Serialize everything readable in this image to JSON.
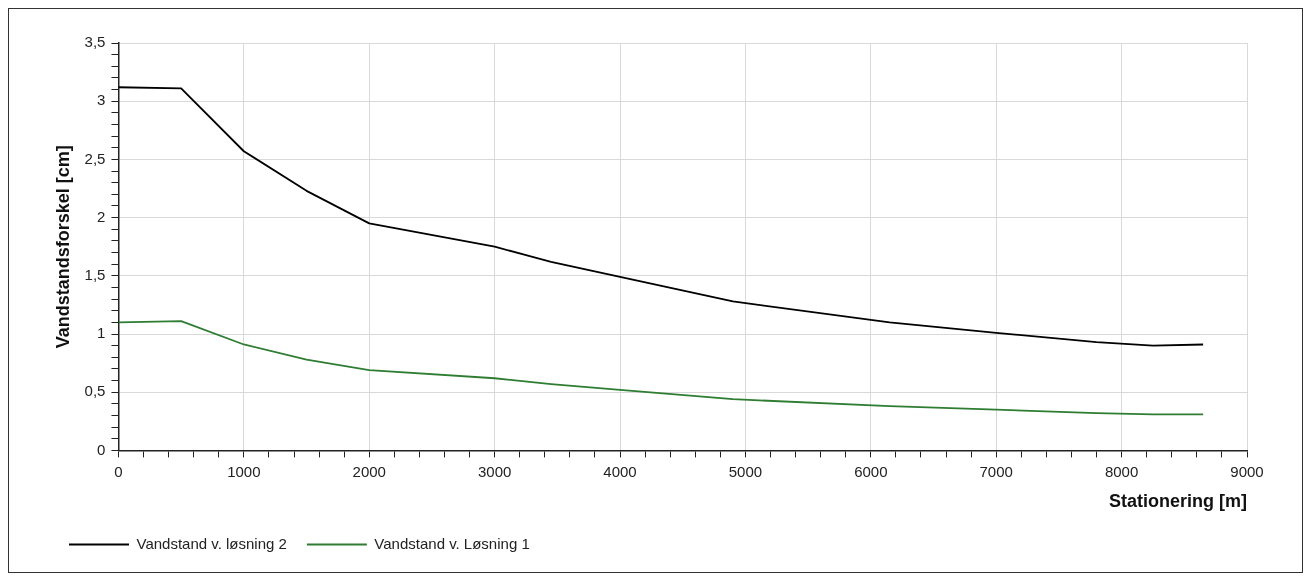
{
  "chart_data": {
    "type": "line",
    "xlabel": "Stationering [m]",
    "ylabel": "Vandstandsforskel [cm]",
    "xlim": [
      0,
      9000
    ],
    "xticks": [
      0,
      {
        "value": 200,
        "label": null
      },
      {
        "value": 400,
        "label": null
      },
      {
        "value": 600,
        "label": null
      },
      {
        "value": 800,
        "label": null
      },
      1000,
      {
        "value": 1200,
        "label": null
      },
      {
        "value": 1400,
        "label": null
      },
      {
        "value": 1600,
        "label": null
      },
      {
        "value": 1800,
        "label": null
      },
      2000,
      {
        "value": 2200,
        "label": null
      },
      {
        "value": 2400,
        "label": null
      },
      {
        "value": 2600,
        "label": null
      },
      {
        "value": 2800,
        "label": null
      },
      3000,
      {
        "value": 3200,
        "label": null
      },
      {
        "value": 3400,
        "label": null
      },
      {
        "value": 3600,
        "label": null
      },
      {
        "value": 3800,
        "label": null
      },
      4000,
      {
        "value": 4200,
        "label": null
      },
      {
        "value": 4400,
        "label": null
      },
      {
        "value": 4600,
        "label": null
      },
      {
        "value": 4800,
        "label": null
      },
      5000,
      {
        "value": 5200,
        "label": null
      },
      {
        "value": 5400,
        "label": null
      },
      {
        "value": 5600,
        "label": null
      },
      {
        "value": 5800,
        "label": null
      },
      6000,
      {
        "value": 6200,
        "label": null
      },
      {
        "value": 6400,
        "label": null
      },
      {
        "value": 6600,
        "label": null
      },
      {
        "value": 6800,
        "label": null
      },
      7000,
      {
        "value": 7200,
        "label": null
      },
      {
        "value": 7400,
        "label": null
      },
      {
        "value": 7600,
        "label": null
      },
      {
        "value": 7800,
        "label": null
      },
      8000,
      {
        "value": 8200,
        "label": null
      },
      {
        "value": 8400,
        "label": null
      },
      {
        "value": 8600,
        "label": null
      },
      {
        "value": 8800,
        "label": null
      },
      9000
    ],
    "ylim": [
      0,
      3.5
    ],
    "yticks": [
      0,
      {
        "value": 0.1,
        "label": null
      },
      {
        "value": 0.2,
        "label": null
      },
      {
        "value": 0.3,
        "label": null
      },
      {
        "value": 0.4,
        "label": null
      },
      {
        "value": 0.5,
        "label": "0,5"
      },
      {
        "value": 0.6,
        "label": null
      },
      {
        "value": 0.7,
        "label": null
      },
      {
        "value": 0.8,
        "label": null
      },
      {
        "value": 0.9,
        "label": null
      },
      1,
      {
        "value": 1.1,
        "label": null
      },
      {
        "value": 1.2,
        "label": null
      },
      {
        "value": 1.3,
        "label": null
      },
      {
        "value": 1.4,
        "label": null
      },
      {
        "value": 1.5,
        "label": "1,5"
      },
      {
        "value": 1.6,
        "label": null
      },
      {
        "value": 1.7,
        "label": null
      },
      {
        "value": 1.8,
        "label": null
      },
      {
        "value": 1.9,
        "label": null
      },
      2,
      {
        "value": 2.1,
        "label": null
      },
      {
        "value": 2.2,
        "label": null
      },
      {
        "value": 2.3,
        "label": null
      },
      {
        "value": 2.4,
        "label": null
      },
      {
        "value": 2.5,
        "label": "2,5"
      },
      {
        "value": 2.6,
        "label": null
      },
      {
        "value": 2.7,
        "label": null
      },
      {
        "value": 2.8,
        "label": null
      },
      {
        "value": 2.9,
        "label": null
      },
      3,
      {
        "value": 3.1,
        "label": null
      },
      {
        "value": 3.2,
        "label": null
      },
      {
        "value": 3.3,
        "label": null
      },
      {
        "value": 3.4,
        "label": null
      },
      {
        "value": 3.5,
        "label": "3,5"
      }
    ],
    "grid": true,
    "legend": "bottom left",
    "marker": "none",
    "line_style": "solid",
    "x": [
      0,
      500,
      1000,
      1500,
      2000,
      3000,
      3450,
      4000,
      4900,
      6150,
      7000,
      7800,
      8250,
      8650
    ],
    "series": [
      {
        "name": "Vandstand v. løsning 2",
        "color": "#000000",
        "values": [
          3.12,
          3.11,
          2.57,
          2.23,
          1.95,
          1.75,
          1.62,
          1.49,
          1.28,
          1.1,
          1.01,
          0.93,
          0.9,
          0.91
        ]
      },
      {
        "name": "Vandstand v. Løsning 1",
        "color": "#2e7d32",
        "values": [
          1.1,
          1.11,
          0.91,
          0.78,
          0.69,
          0.62,
          0.57,
          0.52,
          0.44,
          0.38,
          0.35,
          0.32,
          0.31,
          0.31
        ]
      }
    ]
  }
}
